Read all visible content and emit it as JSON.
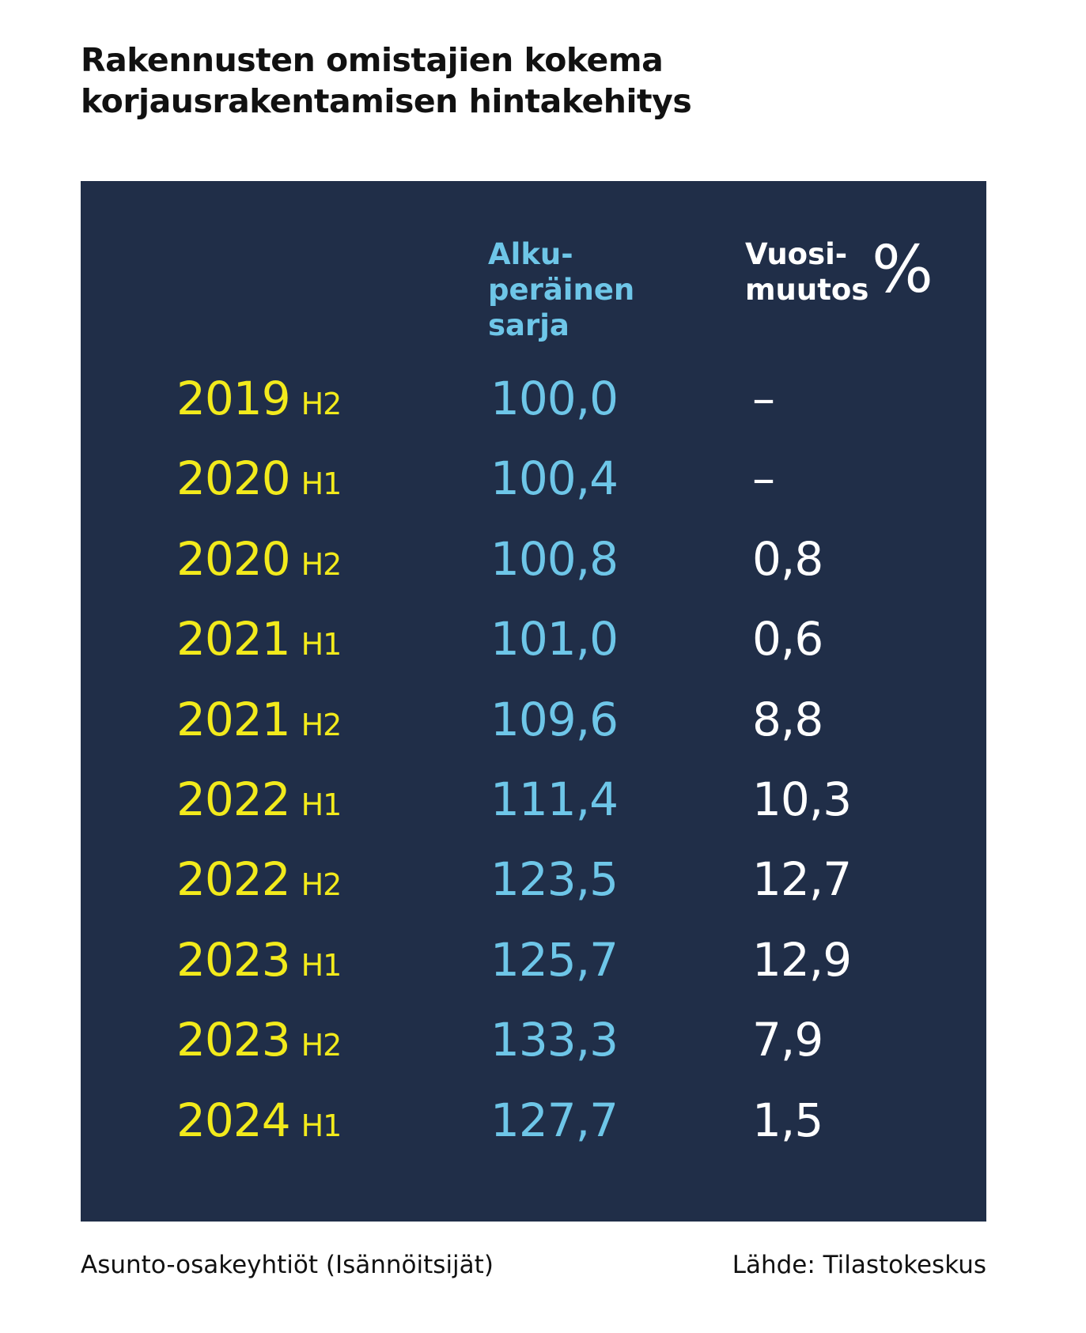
{
  "title_line1": "Rakennusten omistajien kokema",
  "title_line2": "korjausrakentamisen hintakehitys",
  "header": {
    "col2": [
      "Alku-",
      "peräinen",
      "sarja"
    ],
    "col3": [
      "Vuosi-",
      "muutos"
    ],
    "percent_symbol": "%"
  },
  "rows": [
    {
      "year": "2019",
      "half": "H2",
      "original": "100,0",
      "change": "–"
    },
    {
      "year": "2020",
      "half": "H1",
      "original": "100,4",
      "change": "–"
    },
    {
      "year": "2020",
      "half": "H2",
      "original": "100,8",
      "change": "0,8"
    },
    {
      "year": "2021",
      "half": "H1",
      "original": "101,0",
      "change": "0,6"
    },
    {
      "year": "2021",
      "half": "H2",
      "original": "109,6",
      "change": "8,8"
    },
    {
      "year": "2022",
      "half": "H1",
      "original": "111,4",
      "change": "10,3"
    },
    {
      "year": "2022",
      "half": "H2",
      "original": "123,5",
      "change": "12,7"
    },
    {
      "year": "2023",
      "half": "H1",
      "original": "125,7",
      "change": "12,9"
    },
    {
      "year": "2023",
      "half": "H2",
      "original": "133,3",
      "change": "7,9"
    },
    {
      "year": "2024",
      "half": "H1",
      "original": "127,7",
      "change": "1,5"
    }
  ],
  "footer_left": "Asunto-osakeyhtiöt (Isännöitsijät)",
  "footer_right": "Lähde: Tilastokeskus",
  "colors": {
    "panel": "#202e48",
    "year": "#f2ea1c",
    "original": "#6ec6e8",
    "change": "#ffffff"
  }
}
